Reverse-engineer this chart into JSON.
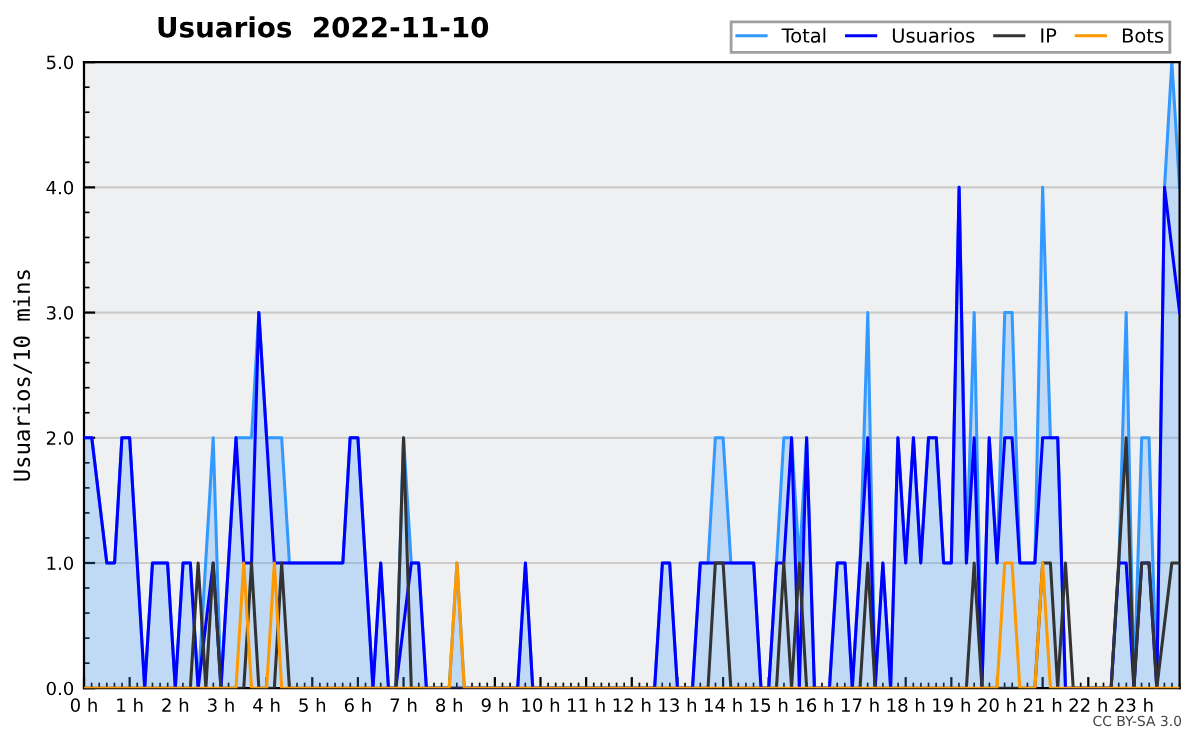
{
  "chart_data": {
    "type": "line",
    "title": "Usuarios  2022-11-10",
    "ylabel": "Usuarios/10 mins",
    "annotations": [
      "CC BY-SA 3.0"
    ],
    "xlim": [
      0,
      24
    ],
    "xticks": [
      {
        "value": 0,
        "label": "0 h"
      },
      {
        "value": 1,
        "label": "1 h"
      },
      {
        "value": 2,
        "label": "2 h"
      },
      {
        "value": 3,
        "label": "3 h"
      },
      {
        "value": 4,
        "label": "4 h"
      },
      {
        "value": 5,
        "label": "5 h"
      },
      {
        "value": 6,
        "label": "6 h"
      },
      {
        "value": 7,
        "label": "7 h"
      },
      {
        "value": 8,
        "label": "8 h"
      },
      {
        "value": 9,
        "label": "9 h"
      },
      {
        "value": 10,
        "label": "10 h"
      },
      {
        "value": 11,
        "label": "11 h"
      },
      {
        "value": 12,
        "label": "12 h"
      },
      {
        "value": 13,
        "label": "13 h"
      },
      {
        "value": 14,
        "label": "14 h"
      },
      {
        "value": 15,
        "label": "15 h"
      },
      {
        "value": 16,
        "label": "16 h"
      },
      {
        "value": 17,
        "label": "17 h"
      },
      {
        "value": 18,
        "label": "18 h"
      },
      {
        "value": 19,
        "label": "19 h"
      },
      {
        "value": 20,
        "label": "20 h"
      },
      {
        "value": 21,
        "label": "21 h"
      },
      {
        "value": 22,
        "label": "22 h"
      },
      {
        "value": 23,
        "label": "23 h"
      }
    ],
    "ylim": [
      0,
      5
    ],
    "yticks": [
      {
        "value": 0,
        "label": "0.0"
      },
      {
        "value": 1,
        "label": "1.0"
      },
      {
        "value": 2,
        "label": "2.0"
      },
      {
        "value": 3,
        "label": "3.0"
      },
      {
        "value": 4,
        "label": "4.0"
      },
      {
        "value": 5,
        "label": "5.0"
      }
    ],
    "grid": "y",
    "legend": "top right",
    "series": [
      {
        "name": "Total",
        "type": "area",
        "color": "#3399ff",
        "x": [
          0,
          0.17,
          0.5,
          0.67,
          0.83,
          1.0,
          1.33,
          1.5,
          1.83,
          2.0,
          2.17,
          2.33,
          2.5,
          2.83,
          3.0,
          3.33,
          3.5,
          3.67,
          3.83,
          4.0,
          4.17,
          4.33,
          4.5,
          5.67,
          5.83,
          6.0,
          6.33,
          6.5,
          6.67,
          6.83,
          7.0,
          7.17,
          7.33,
          7.5,
          8.0,
          8.17,
          8.33,
          9.5,
          9.67,
          9.83,
          12.5,
          12.67,
          12.83,
          13.0,
          13.33,
          13.5,
          13.67,
          13.83,
          14.0,
          14.17,
          14.67,
          14.83,
          15.0,
          15.17,
          15.33,
          15.5,
          15.67,
          15.83,
          16.0,
          16.33,
          16.5,
          16.67,
          16.83,
          17.0,
          17.17,
          17.33,
          17.5,
          17.67,
          17.83,
          18.0,
          18.17,
          18.33,
          18.5,
          18.67,
          18.83,
          19.0,
          19.17,
          19.33,
          19.5,
          19.67,
          19.83,
          20.0,
          20.17,
          20.33,
          20.5,
          20.83,
          21.0,
          21.17,
          21.33,
          21.5,
          22.5,
          22.67,
          22.83,
          23.0,
          23.17,
          23.33,
          23.5,
          23.67,
          23.83,
          24.0
        ],
        "values": [
          2,
          2,
          1,
          1,
          2,
          2,
          0,
          1,
          1,
          0,
          1,
          1,
          0,
          2,
          0,
          2,
          2,
          2,
          3,
          2,
          2,
          2,
          1,
          1,
          2,
          2,
          0,
          1,
          0,
          0,
          2,
          1,
          1,
          0,
          0,
          1,
          0,
          0,
          1,
          0,
          0,
          1,
          1,
          0,
          0,
          1,
          1,
          2,
          2,
          1,
          1,
          0,
          0,
          1,
          2,
          2,
          1,
          2,
          0,
          0,
          1,
          1,
          0,
          1,
          3,
          0,
          1,
          0,
          2,
          1,
          2,
          1,
          2,
          2,
          1,
          1,
          4,
          1,
          3,
          0,
          2,
          1,
          3,
          3,
          1,
          1,
          4,
          2,
          2,
          0,
          0,
          1,
          3,
          0,
          2,
          2,
          0,
          4,
          5,
          4
        ]
      },
      {
        "name": "Usuarios",
        "color": "#0000ff",
        "x": [
          0,
          0.17,
          0.5,
          0.67,
          0.83,
          1.0,
          1.33,
          1.5,
          1.83,
          2.0,
          2.17,
          2.33,
          2.5,
          2.83,
          3.0,
          3.33,
          3.5,
          3.67,
          3.83,
          4.17,
          5.67,
          5.83,
          6.0,
          6.33,
          6.5,
          6.67,
          6.83,
          7.17,
          7.33,
          7.5,
          9.5,
          9.67,
          9.83,
          12.5,
          12.67,
          12.83,
          13.0,
          13.33,
          13.5,
          14.67,
          14.83,
          15.0,
          15.17,
          15.33,
          15.5,
          15.67,
          15.83,
          16.0,
          16.33,
          16.5,
          16.67,
          16.83,
          17.0,
          17.17,
          17.33,
          17.5,
          17.67,
          17.83,
          18.0,
          18.17,
          18.33,
          18.5,
          18.67,
          18.83,
          19.0,
          19.17,
          19.33,
          19.5,
          19.67,
          19.83,
          20.0,
          20.17,
          20.33,
          20.5,
          20.83,
          21.0,
          21.33,
          21.5,
          22.5,
          22.67,
          22.83,
          23.0,
          23.17,
          23.33,
          23.5,
          23.67,
          24.0
        ],
        "values": [
          2,
          2,
          1,
          1,
          2,
          2,
          0,
          1,
          1,
          0,
          1,
          1,
          0,
          1,
          0,
          2,
          1,
          1,
          3,
          1,
          1,
          2,
          2,
          0,
          1,
          0,
          0,
          1,
          1,
          0,
          0,
          1,
          0,
          0,
          1,
          1,
          0,
          0,
          1,
          1,
          0,
          0,
          1,
          1,
          2,
          0,
          2,
          0,
          0,
          1,
          1,
          0,
          1,
          2,
          0,
          1,
          0,
          2,
          1,
          2,
          1,
          2,
          2,
          1,
          1,
          4,
          1,
          2,
          0,
          2,
          1,
          2,
          2,
          1,
          1,
          2,
          2,
          0,
          0,
          1,
          1,
          0,
          1,
          1,
          0,
          4,
          3
        ]
      },
      {
        "name": "IP",
        "color": "#333333",
        "x": [
          0,
          2.33,
          2.5,
          2.67,
          2.83,
          3.0,
          3.5,
          3.67,
          3.83,
          4.17,
          4.33,
          4.5,
          6.83,
          7.0,
          7.17,
          13.67,
          13.83,
          14.0,
          14.17,
          15.17,
          15.33,
          15.5,
          15.67,
          15.83,
          17.0,
          17.17,
          17.33,
          19.33,
          19.5,
          19.67,
          20.83,
          21.0,
          21.17,
          21.33,
          21.5,
          21.67,
          22.5,
          22.83,
          23.0,
          23.17,
          23.33,
          23.5,
          23.83,
          24.0
        ],
        "values": [
          0,
          0,
          1,
          0,
          1,
          0,
          0,
          1,
          0,
          0,
          1,
          0,
          0,
          2,
          0,
          0,
          1,
          1,
          0,
          0,
          1,
          0,
          1,
          0,
          0,
          1,
          0,
          0,
          1,
          0,
          0,
          1,
          1,
          0,
          1,
          0,
          0,
          2,
          0,
          1,
          1,
          0,
          1,
          1
        ]
      },
      {
        "name": "Bots",
        "color": "#ff9900",
        "x": [
          0,
          3.33,
          3.5,
          3.67,
          4.0,
          4.17,
          4.33,
          8.0,
          8.17,
          8.33,
          20.0,
          20.17,
          20.33,
          20.5,
          20.83,
          21.0,
          21.17,
          24.0
        ],
        "values": [
          0,
          0,
          1,
          0,
          0,
          1,
          0,
          0,
          1,
          0,
          0,
          1,
          1,
          0,
          0,
          1,
          0,
          0
        ]
      }
    ]
  }
}
